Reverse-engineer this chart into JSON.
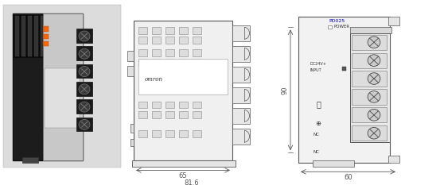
{
  "bg_color": "#ffffff",
  "line_color": "#555555",
  "dim_color": "#555555",
  "label_color": "#333333",
  "blue_label": "#0000cc",
  "dim_65": "65",
  "dim_81_6": "81.6",
  "dim_90": "90",
  "dim_60": "60",
  "label_pd025": "PD025",
  "label_power": "POWER",
  "label_dc24v": "DC24V+",
  "label_input": "INPUT",
  "label_nc1": "NC",
  "label_nc2": "NC",
  "label_omron": "omron"
}
